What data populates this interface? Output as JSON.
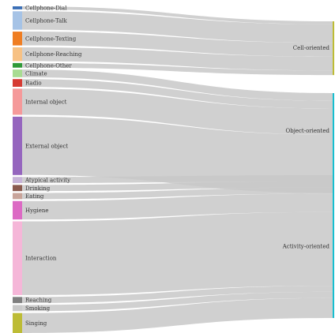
{
  "diagram": {
    "type": "sankey",
    "sources": [
      {
        "name": "Cellphone-Dial",
        "value": 1,
        "color": "#3b6fb6",
        "target": 0
      },
      {
        "name": "Cellphone-Talk",
        "value": 6,
        "color": "#a6c3e6",
        "target": 0
      },
      {
        "name": "Cellphone-Texting",
        "value": 4.5,
        "color": "#ef7d22",
        "target": 0
      },
      {
        "name": "Cellphone-Reaching",
        "value": 4.5,
        "color": "#f7c184",
        "target": 0
      },
      {
        "name": "Cellphone-Other",
        "value": 1.5,
        "color": "#2f9a38",
        "target": 0
      },
      {
        "name": "Climate",
        "value": 2.5,
        "color": "#a8dc92",
        "target": 1
      },
      {
        "name": "Radio",
        "value": 2.5,
        "color": "#d63b33",
        "target": 1
      },
      {
        "name": "Internal object",
        "value": 8.5,
        "color": "#f5999a",
        "target": 1
      },
      {
        "name": "External object",
        "value": 19,
        "color": "#9565be",
        "target": 1
      },
      {
        "name": "Atypical activity",
        "value": 2,
        "color": "#c7b3d8",
        "target": 2
      },
      {
        "name": "Drinking",
        "value": 2,
        "color": "#8a5a4e",
        "target": 2
      },
      {
        "name": "Eating",
        "value": 2,
        "color": "#c9a49a",
        "target": 2
      },
      {
        "name": "Hygiene",
        "value": 6,
        "color": "#dc6ac4",
        "target": 2
      },
      {
        "name": "Interaction",
        "value": 24,
        "color": "#f5b6d8",
        "target": 2
      },
      {
        "name": "Reaching",
        "value": 2,
        "color": "#7f7f7f",
        "target": 2
      },
      {
        "name": "Smoking",
        "value": 2,
        "color": "#c9c9c9",
        "target": 2
      },
      {
        "name": "Singing",
        "value": 6.5,
        "color": "#bdbc35",
        "target": 2
      }
    ],
    "targets": [
      {
        "name": "Cell-oriented",
        "color": "#bdbc35"
      },
      {
        "name": "Object-oriented",
        "color": "#17becf"
      },
      {
        "name": "Activity-oriented",
        "color": "#17becf"
      }
    ]
  }
}
